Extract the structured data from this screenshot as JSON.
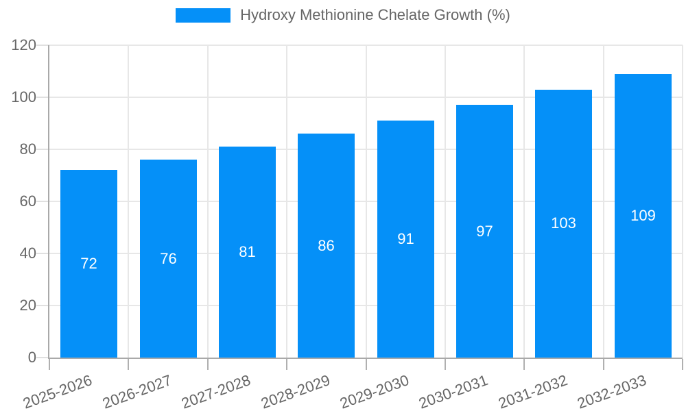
{
  "legend": {
    "label": "Hydroxy Methionine Chelate Growth (%)"
  },
  "chart_data": {
    "type": "bar",
    "title": "Hydroxy Methionine Chelate Growth (%)",
    "categories": [
      "2025-2026",
      "2026-2027",
      "2027-2028",
      "2028-2029",
      "2029-2030",
      "2030-2031",
      "2031-2032",
      "2032-2033"
    ],
    "values": [
      72,
      76,
      81,
      86,
      91,
      97,
      103,
      109
    ],
    "xlabel": "",
    "ylabel": "",
    "ylim": [
      0,
      120
    ],
    "yticks": [
      0,
      20,
      40,
      60,
      80,
      100,
      120
    ],
    "grid": true,
    "legend_position": "top",
    "data_labels": true,
    "colors": {
      "bar": "#0590f8",
      "text": "#666666",
      "grid": "#e7e7e7",
      "axis": "#a9a9a9",
      "tick_x": "#b0b0b0",
      "tick_y": "#e0e0e0",
      "data_label": "#ffffff",
      "background": "#ffffff"
    }
  }
}
